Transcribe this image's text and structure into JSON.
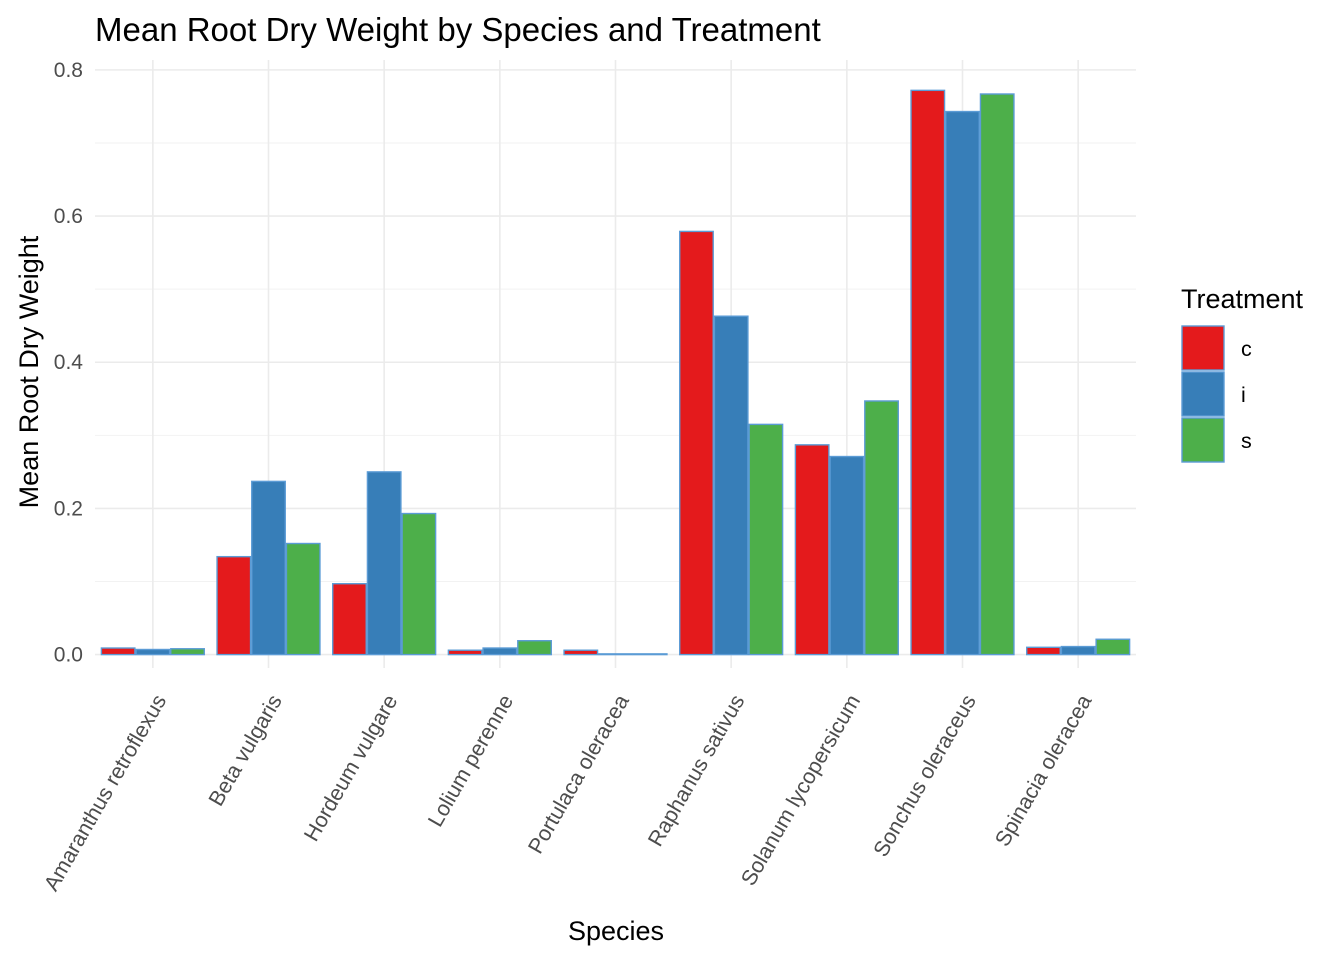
{
  "chart_data": {
    "type": "bar",
    "title": "Mean Root Dry Weight by Species and Treatment",
    "xlabel": "Species",
    "ylabel": "Mean Root Dry Weight",
    "ylim": [
      -0.02,
      0.8
    ],
    "yticks": [
      0.0,
      0.2,
      0.4,
      0.6,
      0.8
    ],
    "ytick_labels": [
      "0.0",
      "0.2",
      "0.4",
      "0.6",
      "0.8"
    ],
    "grid": true,
    "legend": {
      "title": "Treatment",
      "position": "right"
    },
    "categories": [
      "Amaranthus retroflexus",
      "Beta vulgaris",
      "Hordeum vulgare",
      "Lolium perenne",
      "Portulaca oleracea",
      "Raphanus sativus",
      "Solanum lycopersicum",
      "Sonchus oleraceus",
      "Spinacia oleracea"
    ],
    "series": [
      {
        "name": "c",
        "color": "#E41A1C",
        "values": [
          0.009,
          0.134,
          0.097,
          0.006,
          0.006,
          0.579,
          0.287,
          0.772,
          0.01
        ]
      },
      {
        "name": "i",
        "color": "#377EB8",
        "values": [
          0.007,
          0.237,
          0.25,
          0.009,
          0.001,
          0.463,
          0.271,
          0.743,
          0.011
        ]
      },
      {
        "name": "s",
        "color": "#4DAF4A",
        "values": [
          0.008,
          0.152,
          0.193,
          0.019,
          0.001,
          0.315,
          0.347,
          0.767,
          0.021
        ]
      }
    ]
  }
}
